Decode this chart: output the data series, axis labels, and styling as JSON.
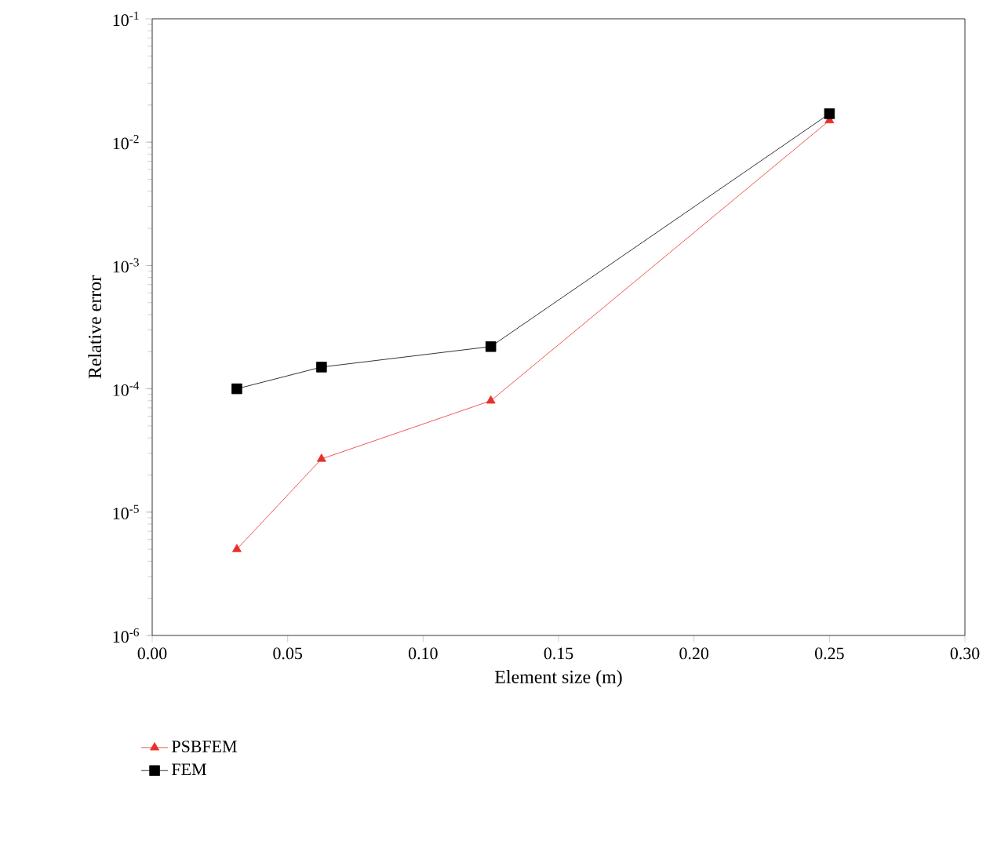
{
  "chart_data": {
    "type": "line",
    "xlabel": "Element size (m)",
    "ylabel": "Relative error",
    "log": "y",
    "legend": "bottom left",
    "grid": false,
    "xlim": [
      0,
      0.3
    ],
    "xticks": [
      {
        "value": 0,
        "label": "0.00"
      },
      0.05,
      {
        "value": 0.1,
        "label": "0.10"
      },
      0.15,
      {
        "value": 0.2,
        "label": "0.20"
      },
      0.25,
      {
        "value": 0.3,
        "label": "0.30"
      }
    ],
    "ylim": [
      1e-06,
      0.1
    ],
    "yticks": [
      {
        "value": 1e-06,
        "label": "10$^{-6}$"
      },
      {
        "value": 1e-05,
        "label": "10$^{-5}$"
      },
      {
        "value": 0.0001,
        "label": "10$^{-4}$"
      },
      {
        "value": 0.001,
        "label": "10$^{-3}$"
      },
      {
        "value": 0.01,
        "label": "10$^{-2}$"
      },
      {
        "value": 0.1,
        "label": "10$^{-1}$"
      }
    ],
    "x": [
      0.03125,
      0.0625,
      0.125,
      0.25
    ],
    "series": [
      {
        "name": "PSBFEM",
        "color": "#e8312a",
        "marker": "triangle",
        "values": [
          5e-06,
          2.7e-05,
          8e-05,
          0.015
        ]
      },
      {
        "name": "FEM",
        "color": "#000000",
        "marker": "square",
        "values": [
          0.0001,
          0.00015,
          0.00022,
          0.017
        ]
      }
    ]
  }
}
